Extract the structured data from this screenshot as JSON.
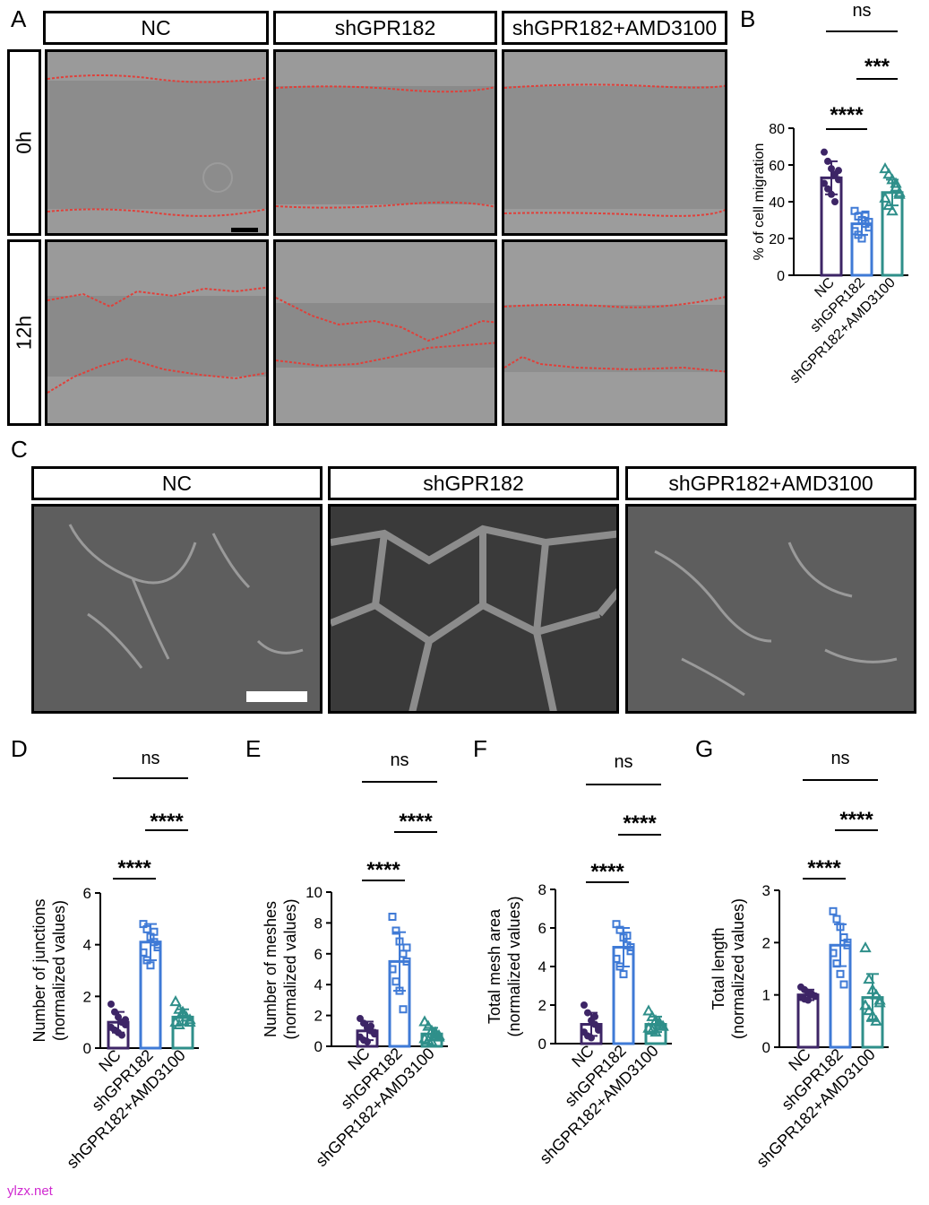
{
  "panels": {
    "A": "A",
    "B": "B",
    "C": "C",
    "D": "D",
    "E": "E",
    "F": "F",
    "G": "G"
  },
  "panel_a": {
    "columns": [
      "NC",
      "shGPR182",
      "shGPR182+AMD3100"
    ],
    "rows": [
      "0h",
      "12h"
    ]
  },
  "panel_c": {
    "columns": [
      "NC",
      "shGPR182",
      "shGPR182+AMD3100"
    ]
  },
  "colors": {
    "nc": "#3d2566",
    "sh": "#3f7ad6",
    "amd": "#2f8f8a",
    "scratch_line": "#e0403a",
    "micro_bg": "#8c8c8c",
    "tube_bg": "#5e5e5e"
  },
  "chart_data": [
    {
      "id": "B",
      "type": "bar",
      "categories": [
        "NC",
        "shGPR182",
        "shGPR182+AMD3100"
      ],
      "ylabel": "% of cell migration",
      "ylim": [
        0,
        80
      ],
      "yticks": [
        0,
        20,
        40,
        60,
        80
      ],
      "values": [
        53,
        28,
        45
      ],
      "sd": [
        9,
        6,
        7
      ],
      "markers": [
        "circle",
        "square",
        "triangle"
      ],
      "points": [
        [
          67,
          62,
          58,
          55,
          52,
          50,
          47,
          44,
          40,
          57
        ],
        [
          35,
          32,
          30,
          28,
          26,
          24,
          22,
          20,
          33,
          29
        ],
        [
          58,
          55,
          52,
          48,
          45,
          42,
          38,
          35,
          50,
          44
        ]
      ],
      "significance": [
        {
          "from": 0,
          "to": 1,
          "label": "****"
        },
        {
          "from": 1,
          "to": 2,
          "label": "***"
        },
        {
          "from": 0,
          "to": 2,
          "label": "ns"
        }
      ]
    },
    {
      "id": "D",
      "type": "bar",
      "categories": [
        "NC",
        "shGPR182",
        "shGPR182+AMD3100"
      ],
      "ylabel": "Number of junctions",
      "ylabel2": "(normalized values)",
      "ylim": [
        0,
        6
      ],
      "yticks": [
        0,
        2,
        4,
        6
      ],
      "values": [
        1.0,
        4.1,
        1.2
      ],
      "sd": [
        0.4,
        0.7,
        0.3
      ],
      "markers": [
        "circle",
        "square",
        "triangle"
      ],
      "points": [
        [
          1.7,
          1.4,
          1.2,
          1.0,
          0.9,
          0.8,
          0.7,
          0.6,
          0.5,
          1.1
        ],
        [
          4.8,
          4.6,
          4.3,
          4.1,
          3.9,
          3.7,
          3.4,
          3.2,
          4.5,
          4.0
        ],
        [
          1.8,
          1.5,
          1.3,
          1.2,
          1.1,
          1.0,
          0.9,
          1.4,
          1.2,
          1.0
        ]
      ],
      "significance": [
        {
          "from": 0,
          "to": 1,
          "label": "****"
        },
        {
          "from": 1,
          "to": 2,
          "label": "****"
        },
        {
          "from": 0,
          "to": 2,
          "label": "ns"
        }
      ]
    },
    {
      "id": "E",
      "type": "bar",
      "categories": [
        "NC",
        "shGPR182",
        "shGPR182+AMD3100"
      ],
      "ylabel": "Number of meshes",
      "ylabel2": "(normalized values)",
      "ylim": [
        0,
        10
      ],
      "yticks": [
        0,
        2,
        4,
        6,
        8,
        10
      ],
      "values": [
        1.0,
        5.5,
        0.8
      ],
      "sd": [
        0.6,
        1.9,
        0.4
      ],
      "markers": [
        "circle",
        "square",
        "triangle"
      ],
      "points": [
        [
          1.8,
          1.5,
          1.2,
          1.0,
          0.8,
          0.6,
          0.4,
          0.3,
          1.3,
          0.9
        ],
        [
          8.4,
          7.5,
          6.8,
          6.0,
          5.5,
          5.0,
          4.2,
          3.6,
          2.4,
          6.4
        ],
        [
          1.6,
          1.3,
          1.0,
          0.8,
          0.6,
          0.5,
          0.4,
          0.3,
          0.9,
          0.7
        ]
      ],
      "significance": [
        {
          "from": 0,
          "to": 1,
          "label": "****"
        },
        {
          "from": 1,
          "to": 2,
          "label": "****"
        },
        {
          "from": 0,
          "to": 2,
          "label": "ns"
        }
      ]
    },
    {
      "id": "F",
      "type": "bar",
      "categories": [
        "NC",
        "shGPR182",
        "shGPR182+AMD3100"
      ],
      "ylabel": "Total mesh area",
      "ylabel2": "(normalized values)",
      "ylim": [
        0,
        8
      ],
      "yticks": [
        0,
        2,
        4,
        6,
        8
      ],
      "values": [
        1.0,
        5.0,
        1.0
      ],
      "sd": [
        0.6,
        1.0,
        0.4
      ],
      "markers": [
        "circle",
        "square",
        "triangle"
      ],
      "points": [
        [
          2.0,
          1.6,
          1.2,
          1.0,
          0.8,
          0.6,
          0.4,
          0.3,
          1.4,
          0.7
        ],
        [
          6.2,
          5.9,
          5.5,
          5.1,
          4.8,
          4.4,
          4.0,
          3.6,
          5.6,
          5.0
        ],
        [
          1.7,
          1.4,
          1.2,
          1.0,
          0.9,
          0.8,
          0.7,
          0.6,
          1.1,
          0.9
        ]
      ],
      "significance": [
        {
          "from": 0,
          "to": 1,
          "label": "****"
        },
        {
          "from": 1,
          "to": 2,
          "label": "****"
        },
        {
          "from": 0,
          "to": 2,
          "label": "ns"
        }
      ]
    },
    {
      "id": "G",
      "type": "bar",
      "categories": [
        "NC",
        "shGPR182",
        "shGPR182+AMD3100"
      ],
      "ylabel": "Total length",
      "ylabel2": "(normalized values)",
      "ylim": [
        0,
        3
      ],
      "yticks": [
        0,
        1,
        2,
        3
      ],
      "values": [
        1.0,
        1.95,
        0.95
      ],
      "sd": [
        0.1,
        0.4,
        0.45
      ],
      "markers": [
        "circle",
        "square",
        "triangle"
      ],
      "points": [
        [
          1.15,
          1.1,
          1.05,
          1.0,
          0.98,
          0.95,
          0.92,
          0.9,
          1.02,
          0.97
        ],
        [
          2.6,
          2.45,
          2.3,
          2.1,
          1.95,
          1.8,
          1.6,
          1.4,
          1.2,
          2.0
        ],
        [
          1.9,
          1.3,
          1.1,
          1.0,
          0.9,
          0.8,
          0.7,
          0.6,
          0.5,
          0.85
        ]
      ],
      "significance": [
        {
          "from": 0,
          "to": 1,
          "label": "****"
        },
        {
          "from": 1,
          "to": 2,
          "label": "****"
        },
        {
          "from": 0,
          "to": 2,
          "label": "ns"
        }
      ]
    }
  ],
  "watermark": "ylzx.net"
}
